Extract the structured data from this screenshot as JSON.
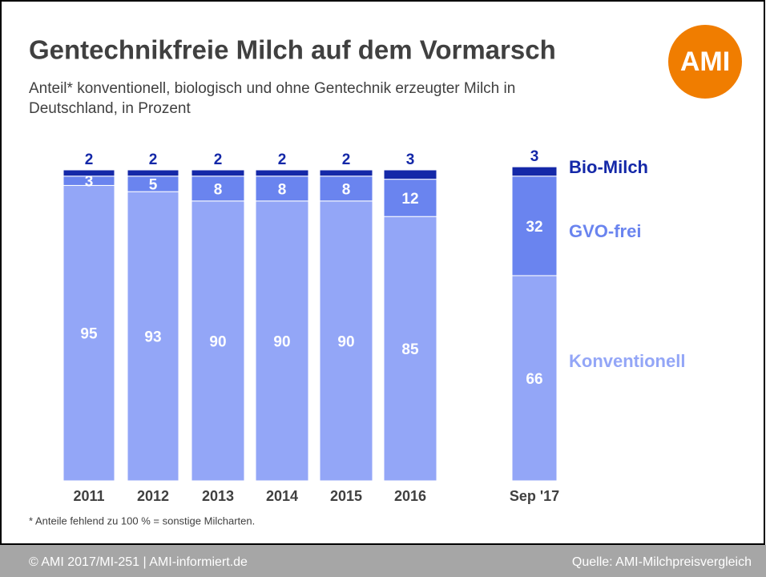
{
  "chart_data": {
    "type": "stacked-bar",
    "title": "Gentechnikfreie Milch auf dem Vormarsch",
    "subtitle": [
      "Anteil* konventionell, biologisch und ohne Gentechnik erzeugter Milch in",
      "Deutschland, in Prozent"
    ],
    "logo": "AMI",
    "categories": [
      "2011",
      "2012",
      "2013",
      "2014",
      "2015",
      "2016",
      "Sep '17"
    ],
    "series": [
      {
        "name": "Konventionell",
        "color": "#93a6f7",
        "values": [
          95,
          93,
          90,
          90,
          90,
          85,
          66
        ]
      },
      {
        "name": "GVO-frei",
        "color": "#6a84ef",
        "values": [
          3,
          5,
          8,
          8,
          8,
          12,
          32
        ]
      },
      {
        "name": "Bio-Milch",
        "color": "#1428a8",
        "values": [
          2,
          2,
          2,
          2,
          2,
          3,
          3
        ]
      }
    ],
    "footnote": "* Anteile fehlend zu 100 % = sonstige Milcharten.",
    "footer_left": "© AMI 2017/MI-251 | AMI-informiert.de",
    "footer_right": "Quelle: AMI-Milchpreisvergleich"
  }
}
